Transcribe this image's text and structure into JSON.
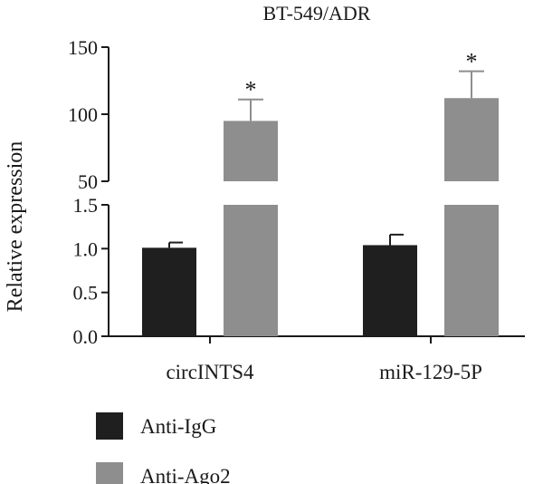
{
  "chart_data": {
    "type": "bar",
    "title": "BT-549/ADR",
    "ylabel": "Relative expression",
    "xlabel": "",
    "categories": [
      "circINTS4",
      "miR-129-5P"
    ],
    "series": [
      {
        "name": "Anti-IgG",
        "color": "#1f1f1f",
        "values": [
          1.01,
          1.04
        ],
        "errors": [
          0.06,
          0.12
        ],
        "significance": [
          "",
          ""
        ]
      },
      {
        "name": "Anti-Ago2",
        "color": "#8e8e8e",
        "values": [
          95,
          112
        ],
        "errors": [
          16,
          20
        ],
        "significance": [
          "*",
          "*"
        ]
      }
    ],
    "axis": {
      "broken": true,
      "lower_segment": {
        "range": [
          0,
          1.5
        ],
        "ticks": [
          "0.0",
          "0.5",
          "1.0",
          "1.5"
        ]
      },
      "upper_segment": {
        "range": [
          50,
          150
        ],
        "ticks": [
          "50",
          "100",
          "150"
        ]
      }
    },
    "grid": false,
    "legend_position": "bottom-left"
  }
}
